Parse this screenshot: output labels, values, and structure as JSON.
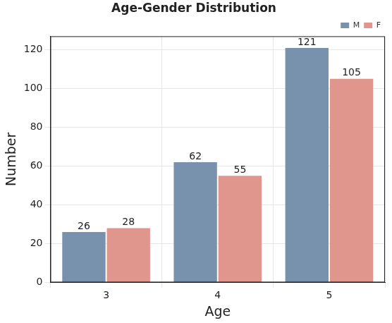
{
  "chart_data": {
    "type": "bar",
    "title": "Age-Gender Distribution",
    "x_label": "Age",
    "y_label": "Number",
    "categories": [
      "3",
      "4",
      "5"
    ],
    "series": [
      {
        "name": "M",
        "color": "#7891ad",
        "values": [
          26,
          62,
          121
        ]
      },
      {
        "name": "F",
        "color": "#e0968d",
        "values": [
          28,
          55,
          105
        ]
      }
    ],
    "ylim": [
      0,
      127
    ],
    "yticks": [
      0,
      20,
      40,
      60,
      80,
      100,
      120
    ],
    "grid": true,
    "legend": "upper right",
    "data_labels": true
  }
}
